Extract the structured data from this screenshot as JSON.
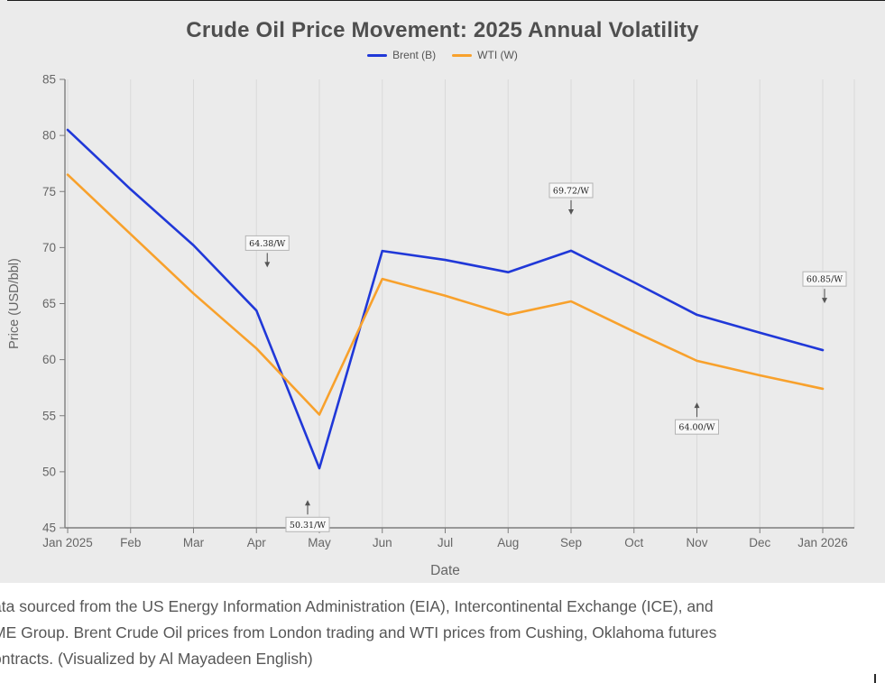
{
  "page": {
    "caption_lines": [
      "ata sourced from the US Energy Information Administration (EIA), Intercontinental Exchange (ICE), and",
      "ME Group. Brent Crude Oil prices from London trading and WTI prices from Cushing, Oklahoma futures",
      "ontracts. (Visualized by Al Mayadeen English)"
    ]
  },
  "colors": {
    "chart_bg": "#ebebeb",
    "grid": "#d9d9d9",
    "axis": "#7d7d7d",
    "tick_text": "#666666",
    "title_text": "#4f4f4f",
    "annotation_bg": "#f8f8f8",
    "annotation_border": "#b3b3b3",
    "annotation_text": "#222222",
    "arrow": "#555555"
  },
  "chart_data": {
    "type": "line",
    "title": "Crude Oil Price Movement: 2025 Annual Volatility",
    "xlabel": "Date",
    "ylabel": "Price (USD/bbl)",
    "categories": [
      "Jan 2025",
      "Feb",
      "Mar",
      "Apr",
      "May",
      "Jun",
      "Jul",
      "Aug",
      "Sep",
      "Oct",
      "Nov",
      "Dec",
      "Jan 2026"
    ],
    "series": [
      {
        "name": "Brent (B)",
        "color": "#2038d8",
        "values": [
          80.5,
          75.2,
          70.2,
          64.38,
          50.31,
          69.7,
          68.9,
          67.8,
          69.72,
          66.9,
          64.0,
          62.4,
          60.85
        ]
      },
      {
        "name": "WTI (W)",
        "color": "#f8a12c",
        "values": [
          76.5,
          71.2,
          65.9,
          61.0,
          55.1,
          67.2,
          65.7,
          64.0,
          65.2,
          62.5,
          59.9,
          58.6,
          57.4
        ]
      }
    ],
    "ylim": [
      45,
      85
    ],
    "yticks": [
      45,
      50,
      55,
      60,
      65,
      70,
      75,
      80,
      85
    ],
    "grid": "vertical",
    "legend_position": "top-center",
    "annotations": [
      {
        "text": "64.38/W",
        "x_index": 3,
        "dx": 12,
        "box_value": 70.4,
        "arrow": "down"
      },
      {
        "text": "50.31/W",
        "x_index": 4,
        "dx": -13,
        "box_value": 45.3,
        "arrow": "up"
      },
      {
        "text": "69.72/W",
        "x_index": 8,
        "dx": 0,
        "box_value": 75.1,
        "arrow": "down"
      },
      {
        "text": "64.00/W",
        "x_index": 10,
        "dx": 0,
        "box_value": 54.0,
        "arrow": "up"
      },
      {
        "text": "60.85/W",
        "x_index": 12,
        "dx": 2,
        "box_value": 67.2,
        "arrow": "down"
      }
    ]
  }
}
